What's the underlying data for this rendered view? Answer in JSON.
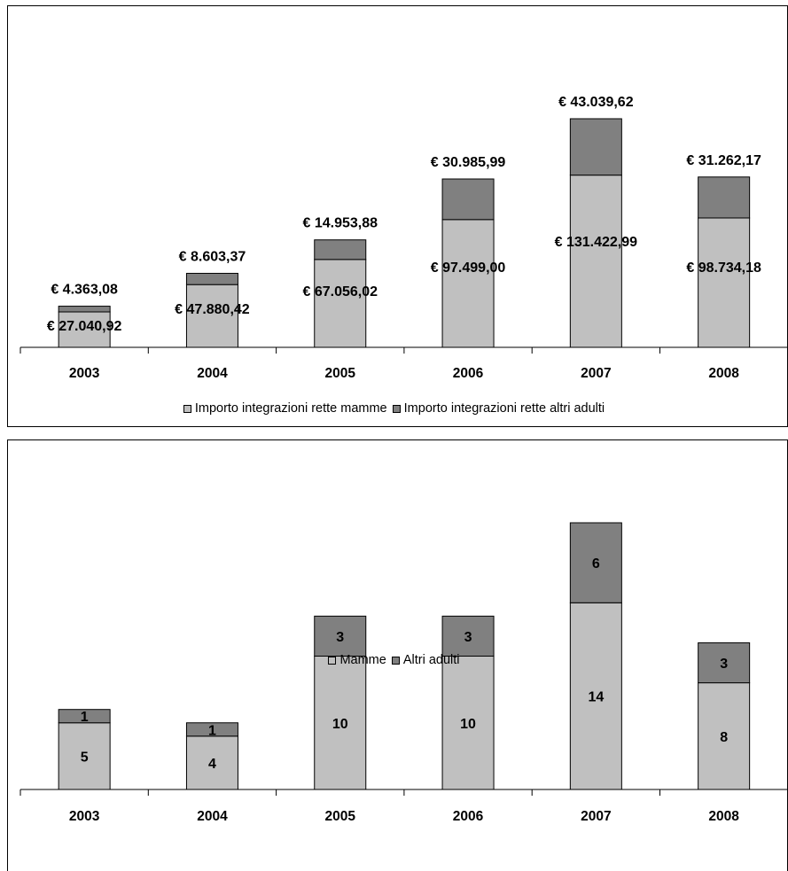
{
  "chart_data": [
    {
      "type": "bar",
      "stacked": true,
      "categories": [
        "2003",
        "2004",
        "2005",
        "2006",
        "2007",
        "2008"
      ],
      "series": [
        {
          "name": "Importo integrazioni rette mamme",
          "color": "#c0c0c0",
          "values": [
            27040.92,
            47880.42,
            67056.02,
            97499.0,
            131422.99,
            98734.18
          ],
          "labels": [
            "€ 27.040,92",
            "€ 47.880,42",
            "€ 67.056,02",
            "€ 97.499,00",
            "€ 131.422,99",
            "€ 98.734,18"
          ]
        },
        {
          "name": "Importo integrazioni rette altri adulti",
          "color": "#808080",
          "values": [
            4363.08,
            8603.37,
            14953.88,
            30985.99,
            43039.62,
            31262.17
          ],
          "labels": [
            "€ 4.363,08",
            "€ 8.603,37",
            "€ 14.953,88",
            "€ 30.985,99",
            "€ 43.039,62",
            "€ 31.262,17"
          ]
        }
      ],
      "title": "",
      "xlabel": "",
      "ylabel": "",
      "ylim": [
        0,
        185000
      ],
      "grid": false,
      "legend_position": "bottom"
    },
    {
      "type": "bar",
      "stacked": true,
      "categories": [
        "2003",
        "2004",
        "2005",
        "2006",
        "2007",
        "2008"
      ],
      "series": [
        {
          "name": "Mamme",
          "color": "#c0c0c0",
          "values": [
            5,
            4,
            10,
            10,
            14,
            8
          ],
          "labels": [
            "5",
            "4",
            "10",
            "10",
            "14",
            "8"
          ]
        },
        {
          "name": "Altri adulti",
          "color": "#808080",
          "values": [
            1,
            1,
            3,
            3,
            6,
            3
          ],
          "labels": [
            "1",
            "1",
            "3",
            "3",
            "6",
            "3"
          ]
        }
      ],
      "title": "",
      "xlabel": "",
      "ylabel": "",
      "ylim": [
        0,
        25
      ],
      "grid": false,
      "legend_position": "bottom"
    }
  ]
}
